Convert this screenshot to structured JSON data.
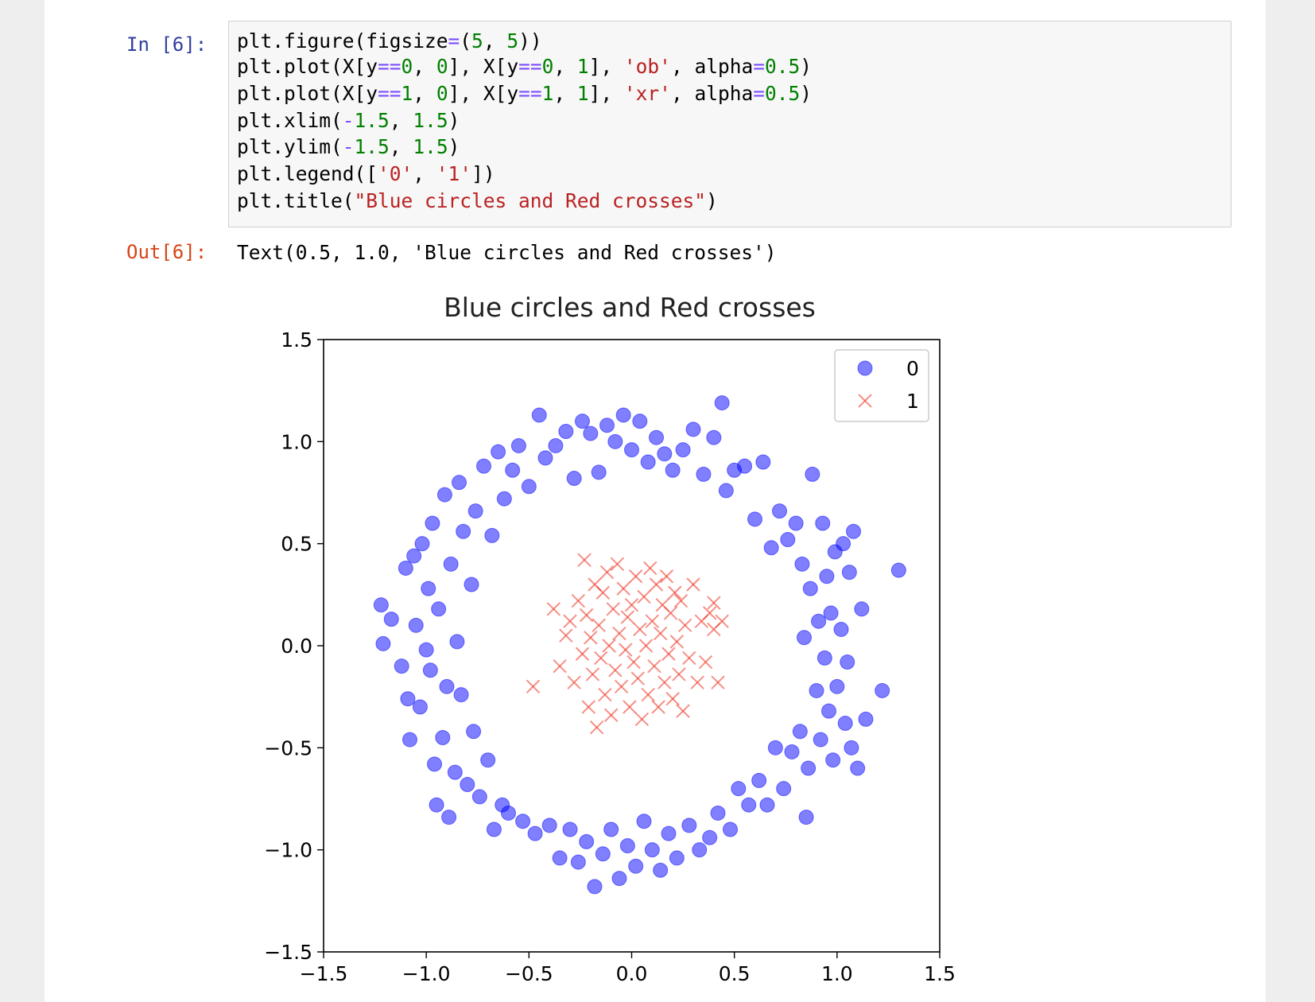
{
  "cell_input": {
    "prompt": "In [6]:",
    "code_lines": [
      "plt.figure(figsize=(5, 5))",
      "plt.plot(X[y==0, 0], X[y==0, 1], 'ob', alpha=0.5)",
      "plt.plot(X[y==1, 0], X[y==1, 1], 'xr', alpha=0.5)",
      "plt.xlim(-1.5, 1.5)",
      "plt.ylim(-1.5, 1.5)",
      "plt.legend(['0', '1'])",
      "plt.title(\"Blue circles and Red crosses\")"
    ]
  },
  "cell_output": {
    "prompt": "Out[6]:",
    "text": "Text(0.5, 1.0, 'Blue circles and Red crosses')"
  },
  "colors": {
    "circle": "#0000ff",
    "cross": "#ee3322",
    "code_bg": "#f7f7f7",
    "in_prompt": "#303f9f",
    "out_prompt": "#d84315"
  },
  "chart_data": {
    "type": "scatter",
    "title": "Blue circles and Red crosses",
    "xlabel": "",
    "ylabel": "",
    "xlim": [
      -1.5,
      1.5
    ],
    "ylim": [
      -1.5,
      1.5
    ],
    "xticks": [
      "−1.5",
      "−1.0",
      "−0.5",
      "0.0",
      "0.5",
      "1.0",
      "1.5"
    ],
    "yticks": [
      "1.5",
      "1.0",
      "0.5",
      "0.0",
      "−0.5",
      "−1.0",
      "−1.5"
    ],
    "xtick_values": [
      -1.5,
      -1.0,
      -0.5,
      0.0,
      0.5,
      1.0,
      1.5
    ],
    "ytick_values": [
      1.5,
      1.0,
      0.5,
      0.0,
      -0.5,
      -1.0,
      -1.5
    ],
    "grid": false,
    "legend_position": "top-right",
    "series": [
      {
        "name": "0",
        "marker": "circle",
        "color": "#0000ff",
        "alpha": 0.5,
        "points": [
          [
            -1.22,
            0.2
          ],
          [
            -1.21,
            0.01
          ],
          [
            -1.17,
            0.13
          ],
          [
            -1.12,
            -0.1
          ],
          [
            -1.1,
            0.38
          ],
          [
            -1.09,
            -0.26
          ],
          [
            -1.08,
            -0.46
          ],
          [
            -1.06,
            0.44
          ],
          [
            -1.05,
            0.1
          ],
          [
            -1.03,
            -0.3
          ],
          [
            -1.02,
            0.5
          ],
          [
            -1.0,
            -0.02
          ],
          [
            -0.99,
            0.28
          ],
          [
            -0.98,
            -0.12
          ],
          [
            -0.97,
            0.6
          ],
          [
            -0.96,
            -0.58
          ],
          [
            -0.95,
            -0.78
          ],
          [
            -0.94,
            0.18
          ],
          [
            -0.92,
            -0.45
          ],
          [
            -0.91,
            0.74
          ],
          [
            -0.9,
            -0.2
          ],
          [
            -0.89,
            -0.84
          ],
          [
            -0.88,
            0.4
          ],
          [
            -0.86,
            -0.62
          ],
          [
            -0.85,
            0.02
          ],
          [
            -0.84,
            0.8
          ],
          [
            -0.83,
            -0.24
          ],
          [
            -0.82,
            0.56
          ],
          [
            -0.8,
            -0.68
          ],
          [
            -0.78,
            0.3
          ],
          [
            -0.77,
            -0.42
          ],
          [
            -0.76,
            0.66
          ],
          [
            -0.74,
            -0.74
          ],
          [
            -0.72,
            0.88
          ],
          [
            -0.7,
            -0.56
          ],
          [
            -0.68,
            0.54
          ],
          [
            -0.67,
            -0.9
          ],
          [
            -0.65,
            0.95
          ],
          [
            -0.63,
            -0.78
          ],
          [
            -0.62,
            0.72
          ],
          [
            -0.6,
            -0.82
          ],
          [
            -0.58,
            0.86
          ],
          [
            -0.55,
            0.98
          ],
          [
            -0.53,
            -0.86
          ],
          [
            -0.5,
            0.78
          ],
          [
            -0.47,
            -0.92
          ],
          [
            -0.45,
            1.13
          ],
          [
            -0.42,
            0.92
          ],
          [
            -0.4,
            -0.88
          ],
          [
            -0.37,
            0.98
          ],
          [
            -0.35,
            -1.04
          ],
          [
            -0.32,
            1.05
          ],
          [
            -0.3,
            -0.9
          ],
          [
            -0.28,
            0.82
          ],
          [
            -0.26,
            -1.06
          ],
          [
            -0.24,
            1.1
          ],
          [
            -0.22,
            -0.96
          ],
          [
            -0.2,
            1.04
          ],
          [
            -0.18,
            -1.18
          ],
          [
            -0.16,
            0.85
          ],
          [
            -0.14,
            -1.02
          ],
          [
            -0.12,
            1.08
          ],
          [
            -0.1,
            -0.9
          ],
          [
            -0.08,
            1.0
          ],
          [
            -0.06,
            -1.14
          ],
          [
            -0.04,
            1.13
          ],
          [
            -0.02,
            -0.98
          ],
          [
            0.0,
            0.96
          ],
          [
            0.02,
            -1.08
          ],
          [
            0.04,
            1.1
          ],
          [
            0.06,
            -0.86
          ],
          [
            0.08,
            0.9
          ],
          [
            0.1,
            -1.0
          ],
          [
            0.12,
            1.02
          ],
          [
            0.14,
            -1.1
          ],
          [
            0.16,
            0.94
          ],
          [
            0.18,
            -0.92
          ],
          [
            0.2,
            0.86
          ],
          [
            0.22,
            -1.04
          ],
          [
            0.25,
            0.96
          ],
          [
            0.28,
            -0.88
          ],
          [
            0.3,
            1.06
          ],
          [
            0.33,
            -1.0
          ],
          [
            0.35,
            0.84
          ],
          [
            0.38,
            -0.94
          ],
          [
            0.4,
            1.02
          ],
          [
            0.42,
            -0.82
          ],
          [
            0.44,
            1.19
          ],
          [
            0.46,
            0.76
          ],
          [
            0.48,
            -0.9
          ],
          [
            0.5,
            0.86
          ],
          [
            0.52,
            -0.7
          ],
          [
            0.55,
            0.88
          ],
          [
            0.57,
            -0.78
          ],
          [
            0.6,
            0.62
          ],
          [
            0.62,
            -0.66
          ],
          [
            0.64,
            0.9
          ],
          [
            0.66,
            -0.78
          ],
          [
            0.68,
            0.48
          ],
          [
            0.7,
            -0.5
          ],
          [
            0.72,
            0.66
          ],
          [
            0.74,
            -0.7
          ],
          [
            0.76,
            0.52
          ],
          [
            0.78,
            -0.52
          ],
          [
            0.8,
            0.6
          ],
          [
            0.82,
            -0.42
          ],
          [
            0.83,
            0.4
          ],
          [
            0.84,
            0.04
          ],
          [
            0.85,
            -0.84
          ],
          [
            0.86,
            -0.6
          ],
          [
            0.87,
            0.28
          ],
          [
            0.88,
            0.84
          ],
          [
            0.9,
            -0.22
          ],
          [
            0.91,
            0.12
          ],
          [
            0.92,
            -0.46
          ],
          [
            0.93,
            0.6
          ],
          [
            0.94,
            -0.06
          ],
          [
            0.95,
            0.34
          ],
          [
            0.96,
            -0.32
          ],
          [
            0.97,
            0.16
          ],
          [
            0.98,
            -0.56
          ],
          [
            0.99,
            0.46
          ],
          [
            1.0,
            -0.2
          ],
          [
            1.02,
            0.08
          ],
          [
            1.03,
            0.5
          ],
          [
            1.04,
            -0.38
          ],
          [
            1.05,
            -0.08
          ],
          [
            1.06,
            0.36
          ],
          [
            1.07,
            -0.5
          ],
          [
            1.08,
            0.56
          ],
          [
            1.1,
            -0.6
          ],
          [
            1.12,
            0.18
          ],
          [
            1.14,
            -0.36
          ],
          [
            1.22,
            -0.22
          ],
          [
            1.3,
            0.37
          ]
        ]
      },
      {
        "name": "1",
        "marker": "cross",
        "color": "#ee3322",
        "alpha": 0.5,
        "points": [
          [
            -0.48,
            -0.2
          ],
          [
            -0.38,
            0.18
          ],
          [
            -0.35,
            -0.1
          ],
          [
            -0.32,
            0.05
          ],
          [
            -0.3,
            0.12
          ],
          [
            -0.28,
            -0.18
          ],
          [
            -0.26,
            0.22
          ],
          [
            -0.24,
            -0.04
          ],
          [
            -0.23,
            0.42
          ],
          [
            -0.22,
            0.15
          ],
          [
            -0.21,
            -0.3
          ],
          [
            -0.2,
            0.04
          ],
          [
            -0.19,
            -0.14
          ],
          [
            -0.18,
            0.3
          ],
          [
            -0.17,
            -0.4
          ],
          [
            -0.16,
            0.1
          ],
          [
            -0.15,
            -0.06
          ],
          [
            -0.14,
            0.26
          ],
          [
            -0.13,
            -0.24
          ],
          [
            -0.12,
            0.36
          ],
          [
            -0.11,
            0.0
          ],
          [
            -0.1,
            -0.34
          ],
          [
            -0.09,
            0.18
          ],
          [
            -0.08,
            -0.12
          ],
          [
            -0.07,
            0.4
          ],
          [
            -0.06,
            0.06
          ],
          [
            -0.05,
            -0.2
          ],
          [
            -0.04,
            0.28
          ],
          [
            -0.03,
            -0.02
          ],
          [
            -0.02,
            0.14
          ],
          [
            -0.01,
            -0.3
          ],
          [
            0.0,
            0.2
          ],
          [
            0.01,
            -0.08
          ],
          [
            0.02,
            0.34
          ],
          [
            0.03,
            -0.16
          ],
          [
            0.04,
            0.08
          ],
          [
            0.05,
            -0.36
          ],
          [
            0.06,
            0.24
          ],
          [
            0.07,
            0.0
          ],
          [
            0.08,
            -0.24
          ],
          [
            0.09,
            0.38
          ],
          [
            0.1,
            0.12
          ],
          [
            0.11,
            -0.1
          ],
          [
            0.12,
            0.3
          ],
          [
            0.13,
            -0.3
          ],
          [
            0.14,
            0.06
          ],
          [
            0.15,
            0.2
          ],
          [
            0.16,
            -0.18
          ],
          [
            0.17,
            0.34
          ],
          [
            0.18,
            -0.04
          ],
          [
            0.19,
            0.16
          ],
          [
            0.2,
            -0.26
          ],
          [
            0.21,
            0.26
          ],
          [
            0.22,
            0.02
          ],
          [
            0.23,
            -0.14
          ],
          [
            0.24,
            0.22
          ],
          [
            0.25,
            -0.32
          ],
          [
            0.26,
            0.1
          ],
          [
            0.28,
            -0.06
          ],
          [
            0.3,
            0.3
          ],
          [
            0.32,
            -0.18
          ],
          [
            0.34,
            0.12
          ],
          [
            0.36,
            -0.08
          ],
          [
            0.38,
            0.16
          ],
          [
            0.4,
            0.08
          ],
          [
            0.42,
            -0.18
          ],
          [
            0.44,
            0.12
          ],
          [
            0.4,
            0.21
          ]
        ]
      }
    ]
  }
}
